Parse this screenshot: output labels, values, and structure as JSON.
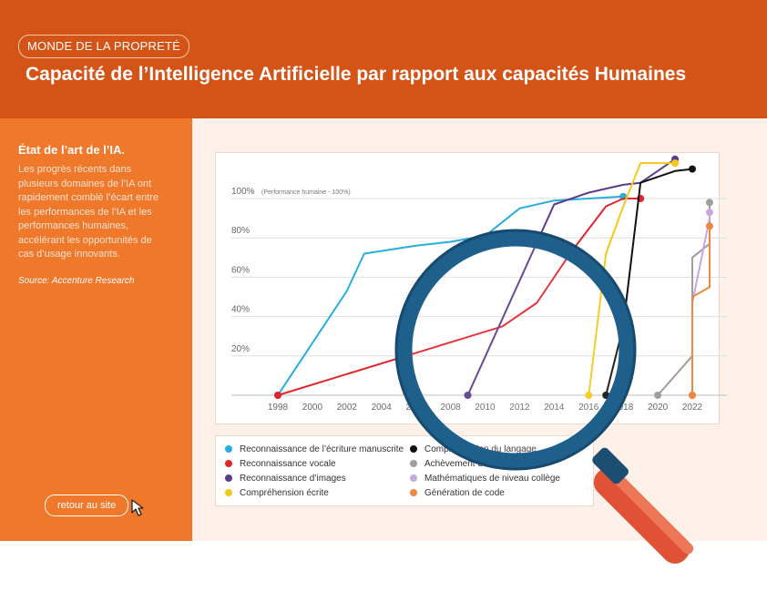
{
  "header": {
    "tag": "MONDE DE LA PROPRETÉ",
    "title": "Capacité de l’Intelligence Artificielle par rapport aux capacités Humaines"
  },
  "sidebar": {
    "heading": "État de l’art de l’IA.",
    "paragraph": "Les progrès récents dans plusieurs domaines de l’IA ont rapidement comblé l’écart entre les performances de l’IA et les performances humaines, accélérant les opportunités de cas d’usage innovants.",
    "source": "Source: Accenture Research",
    "retour_label": "retour au site"
  },
  "colors": {
    "header": "#d45418",
    "sidebar": "#ef782b",
    "content_bg": "#fdf0e8",
    "magnifier_frame": "#1f5f8b",
    "magnifier_handle": "#e05235"
  },
  "chart_data": {
    "type": "line",
    "title": "",
    "xlabel": "",
    "ylabel": "",
    "xlim": [
      1997,
      2024
    ],
    "ylim": [
      0,
      120
    ],
    "x_ticks": [
      "1998",
      "2000",
      "2002",
      "2004",
      "2006",
      "2008",
      "2010",
      "2012",
      "2014",
      "2016",
      "2018",
      "2020",
      "2022"
    ],
    "y_ticks": [
      "20%",
      "40%",
      "60%",
      "80%",
      "100%"
    ],
    "reference_line_label": "(Performance humaine - 100%)",
    "grid": true,
    "legend_position": "bottom",
    "series": [
      {
        "name": "Reconnaissance de l’écriture manuscrite",
        "color": "#27acde",
        "points": [
          [
            1998,
            0
          ],
          [
            2002,
            53
          ],
          [
            2003,
            72
          ],
          [
            2006,
            76
          ],
          [
            2008,
            78
          ],
          [
            2010,
            81
          ],
          [
            2012,
            95
          ],
          [
            2014,
            99
          ],
          [
            2016,
            100
          ],
          [
            2018,
            101
          ]
        ]
      },
      {
        "name": "Reconnaissance vocale",
        "color": "#e0262b",
        "points": [
          [
            1998,
            0
          ],
          [
            2011,
            35
          ],
          [
            2013,
            47
          ],
          [
            2015,
            73
          ],
          [
            2017,
            96
          ],
          [
            2018,
            100
          ],
          [
            2019,
            100
          ]
        ]
      },
      {
        "name": "Reconnaissance d’images",
        "color": "#5b3b8f",
        "points": [
          [
            2009,
            0
          ],
          [
            2014,
            97
          ],
          [
            2016,
            103
          ],
          [
            2018,
            107
          ],
          [
            2019,
            108
          ],
          [
            2021,
            120
          ]
        ]
      },
      {
        "name": "Compréhension écrite",
        "color": "#f4c81a",
        "points": [
          [
            2016,
            0
          ],
          [
            2017,
            72
          ],
          [
            2018,
            96
          ],
          [
            2019,
            118
          ],
          [
            2020,
            118
          ],
          [
            2021,
            118
          ]
        ]
      },
      {
        "name": "Compréhension du langage",
        "color": "#111111",
        "points": [
          [
            2017,
            0
          ],
          [
            2018,
            35
          ],
          [
            2019,
            108
          ],
          [
            2021,
            114
          ],
          [
            2022,
            115
          ]
        ]
      },
      {
        "name": "Achèvement de phrase",
        "color": "#9e9e9e",
        "points": [
          [
            2020,
            0
          ],
          [
            2022,
            20
          ],
          [
            2022,
            70
          ],
          [
            2023,
            77
          ],
          [
            2023,
            98
          ]
        ]
      },
      {
        "name": "Mathématiques de niveau collège",
        "color": "#c8a6de",
        "points": [
          [
            2022,
            0
          ],
          [
            2022,
            47
          ],
          [
            2023,
            90
          ],
          [
            2023,
            93
          ]
        ]
      },
      {
        "name": "Génération de code",
        "color": "#ee8840",
        "points": [
          [
            2022,
            0
          ],
          [
            2022,
            50
          ],
          [
            2023,
            55
          ],
          [
            2023,
            86
          ]
        ]
      }
    ]
  }
}
